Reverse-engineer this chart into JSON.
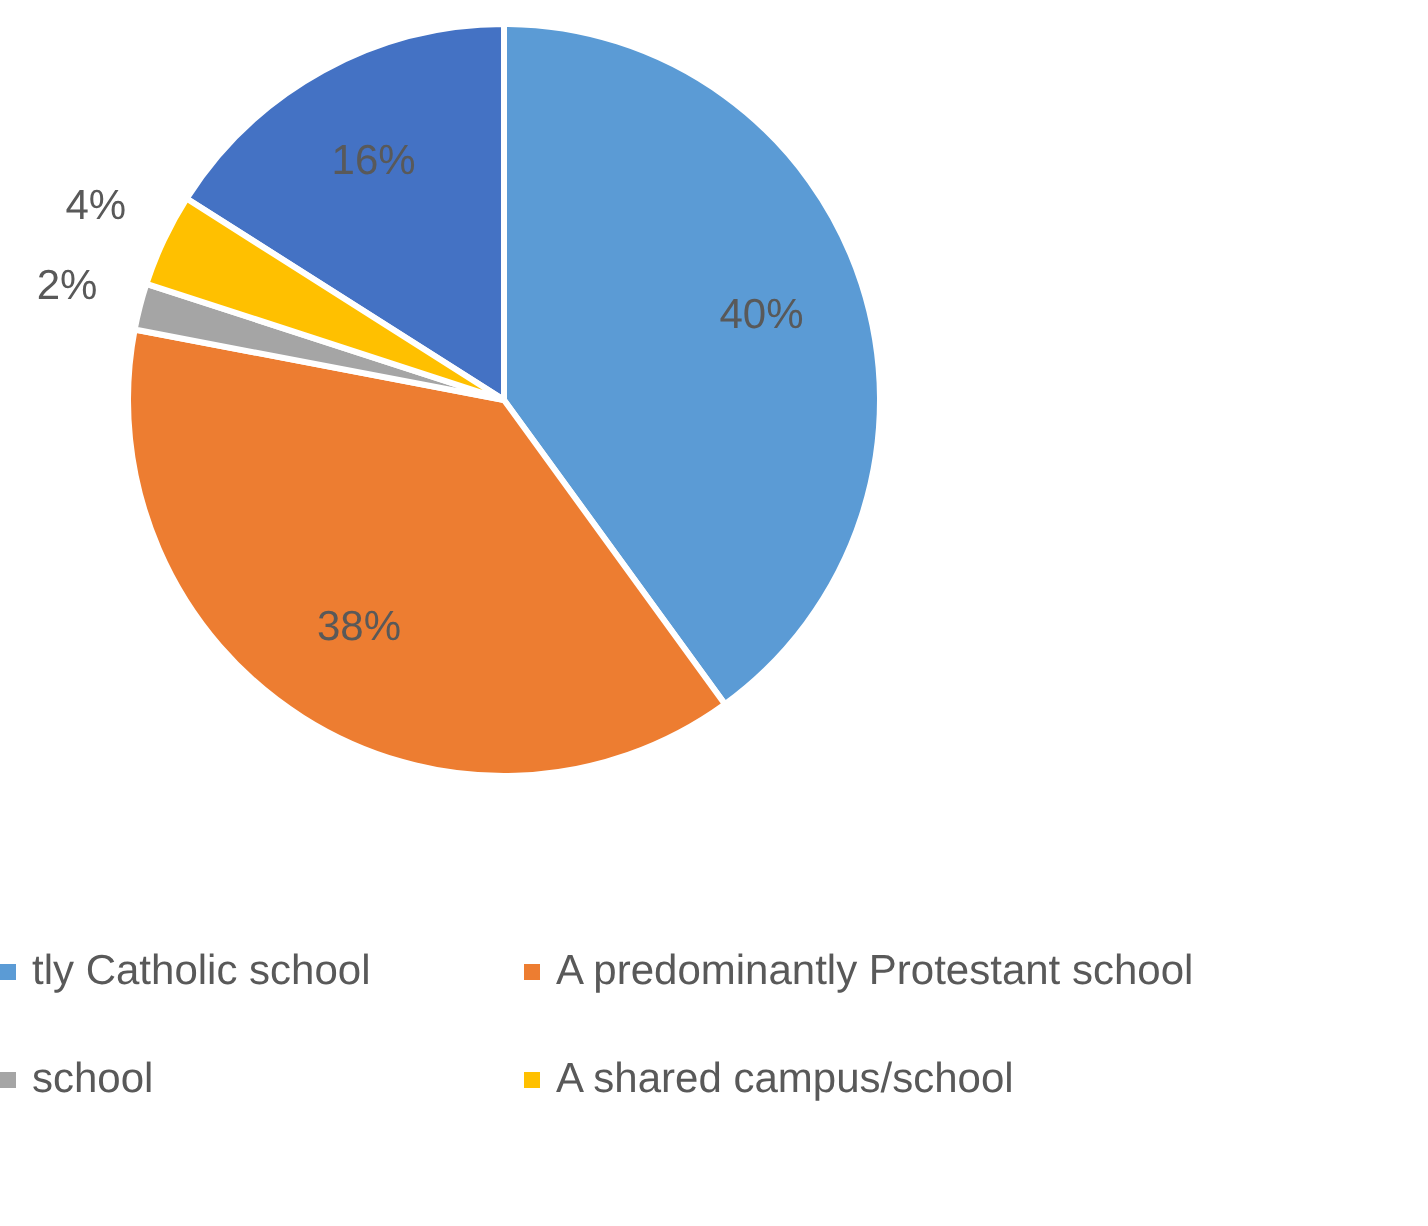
{
  "chart_data": {
    "type": "pie",
    "categories": [
      null,
      "tly Catholic school",
      "A predominantly Protestant school",
      "school",
      "A shared campus/school"
    ],
    "values": [
      16,
      40,
      38,
      2,
      4
    ],
    "colors": [
      "#4472c4",
      "#5b9bd5",
      "#ed7d31",
      "#a5a5a5",
      "#ffc000"
    ],
    "value_labels": [
      "16%",
      "40%",
      "38%",
      "2%",
      "4%"
    ],
    "legend": "bottom"
  }
}
